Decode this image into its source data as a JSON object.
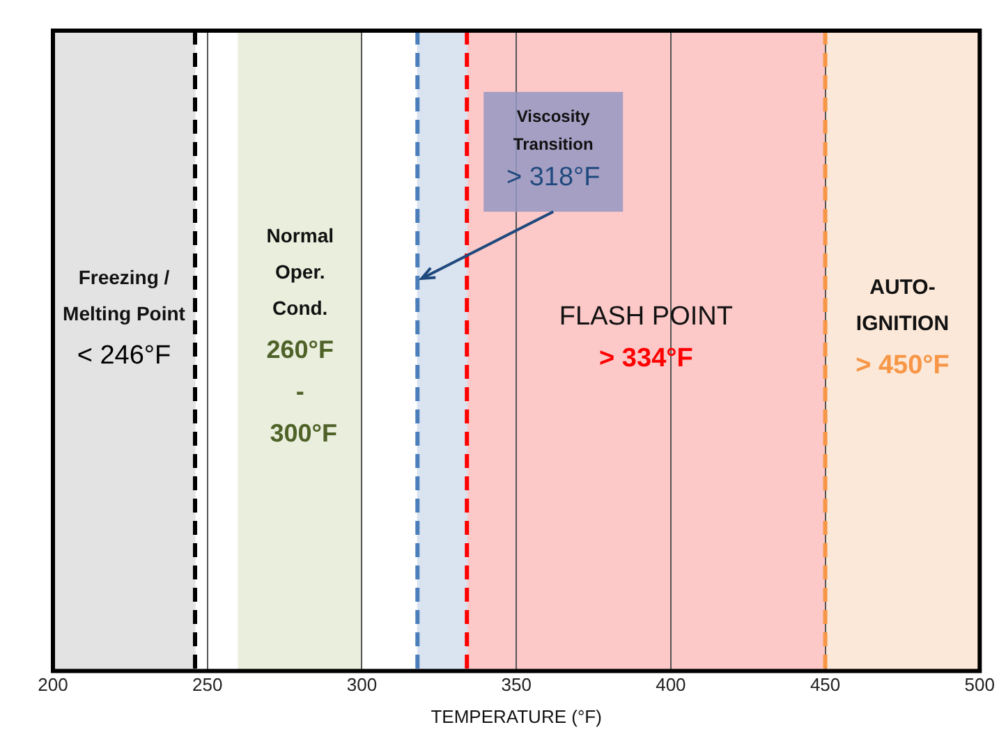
{
  "chart_data": {
    "type": "bar",
    "orientation": "horizontal",
    "xlabel": "TEMPERATURE (°F)",
    "xlim": [
      200,
      500
    ],
    "xticks": [
      200,
      250,
      300,
      350,
      400,
      450,
      500
    ],
    "grid": "x",
    "tick_labels": "x",
    "categories": [
      null
    ],
    "series": [
      {
        "name": "Freezing / Melting Point",
        "color": "#e3e3e3",
        "base": [
          200
        ],
        "values": [
          46
        ]
      },
      {
        "name": "Normal Oper. Cond.",
        "color": "#e9eedd",
        "base": [
          260
        ],
        "values": [
          40
        ]
      },
      {
        "name": "Viscosity Transition",
        "color": "#dae3f0",
        "base": [
          318
        ],
        "values": [
          16
        ]
      },
      {
        "name": "FLASH POINT",
        "color": "#fcc8c8",
        "base": [
          334
        ],
        "values": [
          116
        ]
      },
      {
        "name": "AUTO-IGNITION",
        "color": "#fce8d8",
        "base": [
          450
        ],
        "values": [
          50
        ]
      }
    ],
    "ref_lines": [
      {
        "axis": "x",
        "value": 246,
        "label": "< 246°F",
        "color": "#000000",
        "line_style": "dashed"
      },
      {
        "axis": "x",
        "value": 318,
        "label": "> 318°F",
        "color": "#4a7ebb",
        "line_style": "dashed"
      },
      {
        "axis": "x",
        "value": 334,
        "label": "> 334°F",
        "color": "#ff0000",
        "line_style": "dashed"
      },
      {
        "axis": "x",
        "value": 450,
        "label": "> 450°F",
        "color": "#f79646",
        "line_style": "dashed"
      }
    ],
    "annotations": [
      "260°F - 300°F"
    ]
  }
}
